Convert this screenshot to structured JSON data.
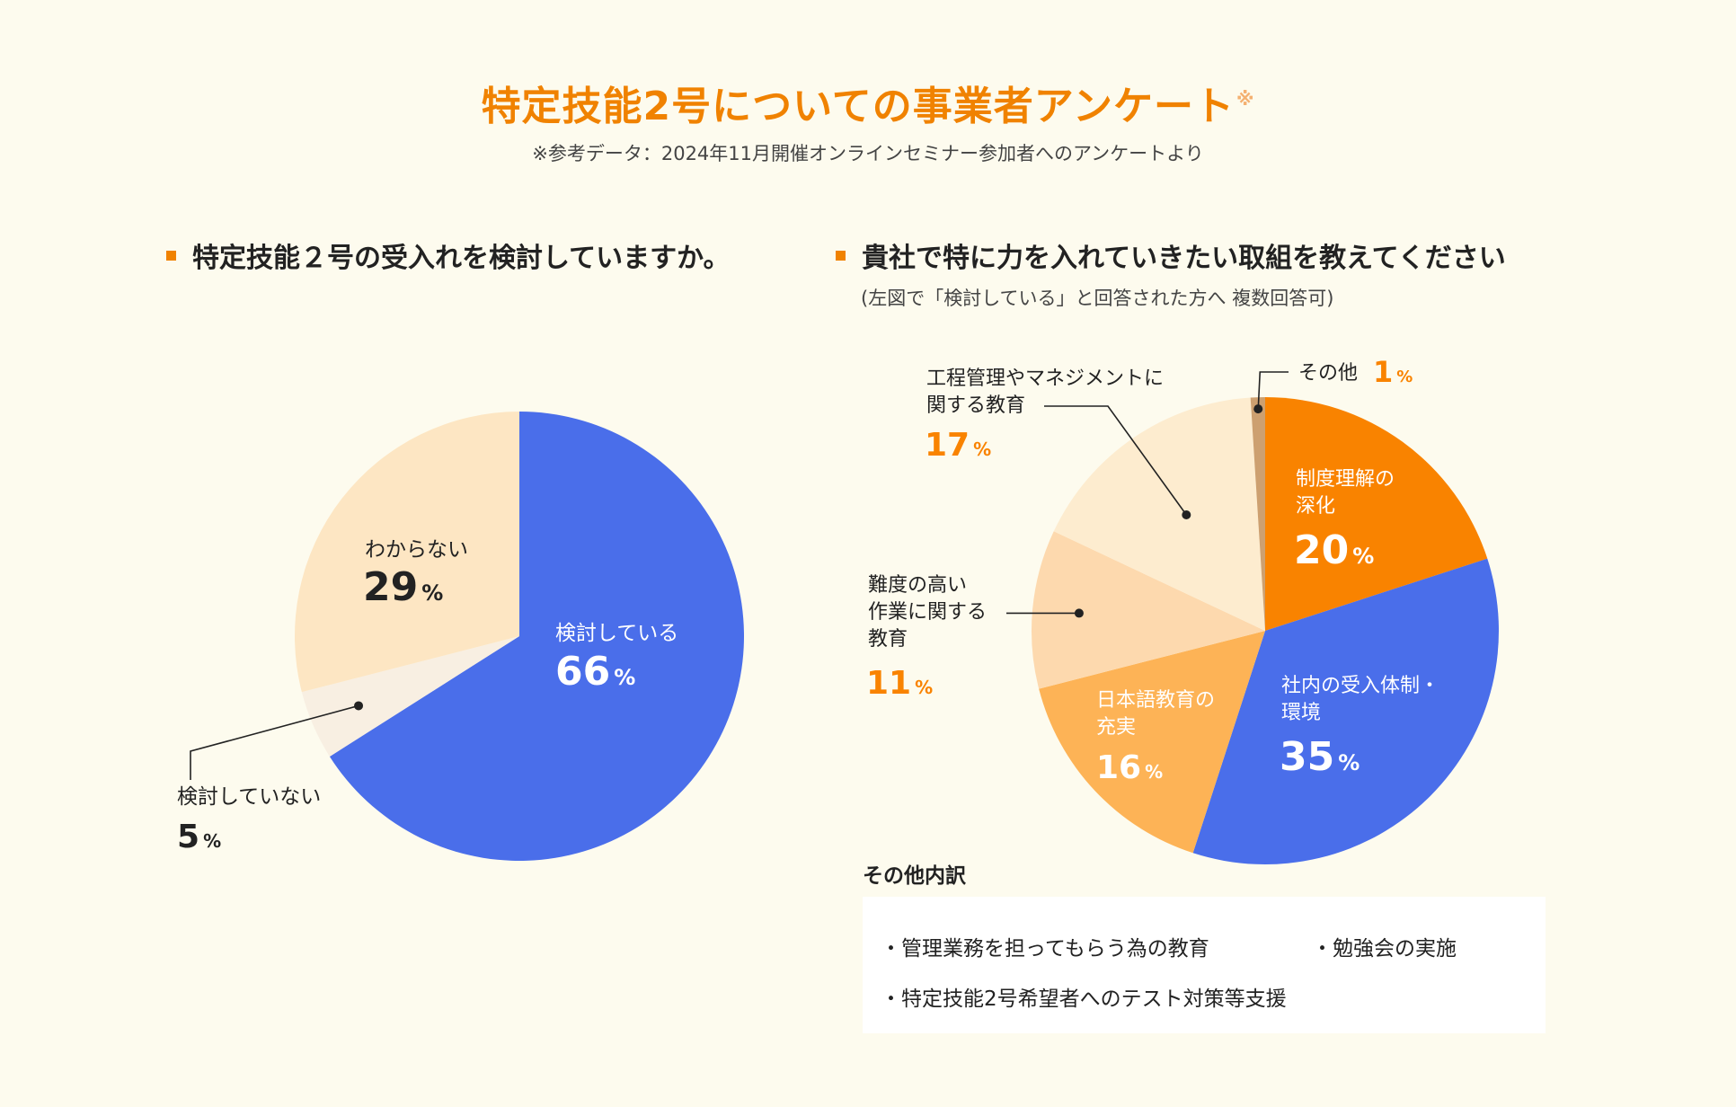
{
  "header": {
    "title": "特定技能2号についての事業者アンケート",
    "title_mark": "※",
    "note": "※参考データ：2024年11月開催オンラインセミナー参加者へのアンケートより"
  },
  "colors": {
    "background": "#fdfbee",
    "accent": "#f08200",
    "blue": "#4a6eea",
    "orange": "#f98300",
    "light_orange": "#fdb356",
    "peach": "#fdd9ae",
    "cream": "#fdeccf",
    "pale": "#f8efe2",
    "tan": "#cda070"
  },
  "chart_data": [
    {
      "type": "pie",
      "title": "特定技能２号の受入れを検討していますか。",
      "unit": "%",
      "slices": [
        {
          "label": "検討している",
          "value": 66,
          "color": "#4a6eea"
        },
        {
          "label": "検討していない",
          "value": 5,
          "color": "#f8efe2"
        },
        {
          "label": "わからない",
          "value": 29,
          "color": "#fde6c3"
        }
      ]
    },
    {
      "type": "pie",
      "title": "貴社で特に力を入れていきたい取組を教えてください",
      "subtitle": "(左図で「検討している」と回答された方へ 複数回答可)",
      "unit": "%",
      "slices": [
        {
          "label": "制度理解の深化",
          "lines": [
            "制度理解の",
            "深化"
          ],
          "value": 20,
          "color": "#f98300"
        },
        {
          "label": "社内の受入体制・環境",
          "lines": [
            "社内の受入体制・",
            "環境"
          ],
          "value": 35,
          "color": "#4a6eea"
        },
        {
          "label": "日本語教育の充実",
          "lines": [
            "日本語教育の",
            "充実"
          ],
          "value": 16,
          "color": "#fdb356"
        },
        {
          "label": "難度の高い作業に関する教育",
          "lines": [
            "難度の高い",
            "作業に関する",
            "教育"
          ],
          "value": 11,
          "color": "#fdd9ae"
        },
        {
          "label": "工程管理やマネジメントに関する教育",
          "lines": [
            "工程管理やマネジメントに",
            "関する教育"
          ],
          "value": 17,
          "color": "#fdeccf"
        },
        {
          "label": "その他",
          "lines": [
            "その他"
          ],
          "value": 1,
          "color": "#cda070"
        }
      ]
    }
  ],
  "other_breakdown": {
    "heading": "その他内訳",
    "items": [
      "・管理業務を担ってもらう為の教育",
      "・勉強会の実施",
      "・特定技能2号希望者へのテスト対策等支援"
    ]
  }
}
